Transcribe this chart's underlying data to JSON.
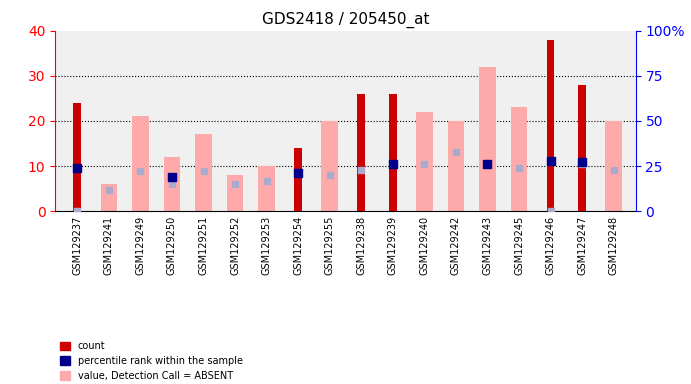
{
  "title": "GDS2418 / 205450_at",
  "samples": [
    "GSM129237",
    "GSM129241",
    "GSM129249",
    "GSM129250",
    "GSM129251",
    "GSM129252",
    "GSM129253",
    "GSM129254",
    "GSM129255",
    "GSM129238",
    "GSM129239",
    "GSM129240",
    "GSM129242",
    "GSM129243",
    "GSM129245",
    "GSM129246",
    "GSM129247",
    "GSM129248"
  ],
  "count_values": [
    24,
    0,
    0,
    0,
    0,
    0,
    0,
    14,
    0,
    26,
    26,
    0,
    0,
    0,
    0,
    38,
    28,
    0
  ],
  "value_absent": [
    0,
    6,
    21,
    12,
    17,
    8,
    10,
    0,
    20,
    0,
    0,
    22,
    20,
    32,
    23,
    0,
    0,
    20
  ],
  "rank_absent": [
    0,
    12,
    22,
    15,
    22,
    15,
    17,
    21,
    20,
    23,
    26,
    26,
    33,
    26,
    24,
    0,
    26,
    23
  ],
  "percentile_rank": [
    24,
    0,
    0,
    19,
    0,
    0,
    0,
    21,
    0,
    0,
    26,
    0,
    0,
    26,
    0,
    28,
    27,
    0
  ],
  "control_group": [
    "GSM129237",
    "GSM129241",
    "GSM129249",
    "GSM129250",
    "GSM129251",
    "GSM129252",
    "GSM129253",
    "GSM129254",
    "GSM129255"
  ],
  "neoplasia_group": [
    "GSM129238",
    "GSM129239",
    "GSM129240",
    "GSM129242",
    "GSM129243",
    "GSM129245",
    "GSM129246",
    "GSM129247",
    "GSM129248"
  ],
  "ylim_left": [
    0,
    40
  ],
  "ylim_right": [
    0,
    100
  ],
  "yticks_left": [
    0,
    10,
    20,
    30,
    40
  ],
  "yticks_right": [
    0,
    25,
    50,
    75,
    100
  ],
  "color_count": "#cc0000",
  "color_percentile": "#00008b",
  "color_value_absent": "#ffaaaa",
  "color_rank_absent": "#aaaacc",
  "background_plot": "#f0f0f0",
  "background_control": "#ccffcc",
  "background_neoplasia": "#88ee88",
  "bar_width": 0.35,
  "legend_items": [
    {
      "color": "#cc0000",
      "marker": "s",
      "label": "count"
    },
    {
      "color": "#00008b",
      "marker": "s",
      "label": "percentile rank within the sample"
    },
    {
      "color": "#ffaaaa",
      "marker": "s",
      "label": "value, Detection Call = ABSENT"
    },
    {
      "color": "#aaaacc",
      "marker": "s",
      "label": "rank, Detection Call = ABSENT"
    }
  ]
}
